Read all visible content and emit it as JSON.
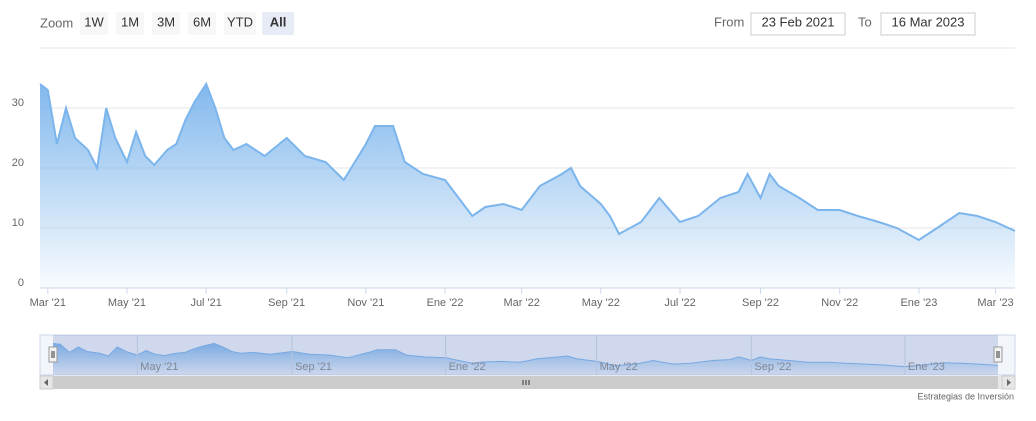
{
  "range_selector": {
    "zoom_label": "Zoom",
    "buttons": [
      "1W",
      "1M",
      "3M",
      "6M",
      "YTD",
      "All"
    ],
    "selected": "All",
    "from_label": "From",
    "from_value": "23 Feb 2021",
    "to_label": "To",
    "to_value": "16 Mar 2023"
  },
  "chart_data": {
    "type": "area",
    "color": "#7cb5ec",
    "x": [
      "2021-02-23",
      "2021-03-01",
      "2021-03-08",
      "2021-03-15",
      "2021-03-22",
      "2021-04-01",
      "2021-04-08",
      "2021-04-15",
      "2021-04-22",
      "2021-05-01",
      "2021-05-08",
      "2021-05-15",
      "2021-05-22",
      "2021-06-01",
      "2021-06-08",
      "2021-06-15",
      "2021-06-22",
      "2021-07-01",
      "2021-07-08",
      "2021-07-15",
      "2021-07-22",
      "2021-08-01",
      "2021-08-15",
      "2021-09-01",
      "2021-09-15",
      "2021-10-01",
      "2021-10-15",
      "2021-11-01",
      "2021-11-08",
      "2021-11-15",
      "2021-11-22",
      "2021-12-01",
      "2021-12-15",
      "2022-01-01",
      "2022-01-15",
      "2022-01-22",
      "2022-02-01",
      "2022-02-15",
      "2022-03-01",
      "2022-03-15",
      "2022-04-01",
      "2022-04-08",
      "2022-04-15",
      "2022-05-01",
      "2022-05-08",
      "2022-05-15",
      "2022-06-01",
      "2022-06-15",
      "2022-07-01",
      "2022-07-15",
      "2022-08-01",
      "2022-08-15",
      "2022-08-22",
      "2022-09-01",
      "2022-09-08",
      "2022-09-15",
      "2022-10-01",
      "2022-10-15",
      "2022-11-01",
      "2022-11-15",
      "2022-12-01",
      "2022-12-15",
      "2023-01-01",
      "2023-01-15",
      "2023-02-01",
      "2023-02-15",
      "2023-03-01",
      "2023-03-16"
    ],
    "values": [
      34,
      33,
      24,
      30,
      25,
      23,
      20,
      30,
      25,
      21,
      26,
      22,
      20.5,
      23,
      24,
      28,
      31,
      34,
      30,
      25,
      23,
      24,
      22,
      25,
      22,
      21,
      18,
      24,
      27,
      27,
      27,
      21,
      19,
      18,
      14,
      12,
      13.5,
      14,
      13,
      17,
      19,
      20,
      17,
      14,
      12,
      9,
      11,
      15,
      11,
      12,
      15,
      16,
      19,
      15,
      19,
      17,
      15,
      13,
      13,
      12,
      11,
      10,
      8,
      10,
      12.5,
      12,
      11,
      9.5
    ],
    "xlim": [
      "2021-02-23",
      "2023-03-16"
    ],
    "xticks": [
      {
        "value": "2021-03-01",
        "label": "Mar '21"
      },
      {
        "value": "2021-05-01",
        "label": "May '21"
      },
      {
        "value": "2021-07-01",
        "label": "Jul '21"
      },
      {
        "value": "2021-09-01",
        "label": "Sep '21"
      },
      {
        "value": "2021-11-01",
        "label": "Nov '21"
      },
      {
        "value": "2022-01-01",
        "label": "Ene '22"
      },
      {
        "value": "2022-03-01",
        "label": "Mar '22"
      },
      {
        "value": "2022-05-01",
        "label": "May '22"
      },
      {
        "value": "2022-07-01",
        "label": "Jul '22"
      },
      {
        "value": "2022-09-01",
        "label": "Sep '22"
      },
      {
        "value": "2022-11-01",
        "label": "Nov '22"
      },
      {
        "value": "2023-01-01",
        "label": "Ene '23"
      },
      {
        "value": "2023-03-01",
        "label": "Mar '23"
      }
    ],
    "ylim": [
      0,
      40
    ],
    "yticks": [
      0,
      10,
      20,
      30
    ],
    "grid": true,
    "navigator_xticks": [
      {
        "value": "2021-05-01",
        "label": "May '21"
      },
      {
        "value": "2021-09-01",
        "label": "Sep '21"
      },
      {
        "value": "2022-01-01",
        "label": "Ene '22"
      },
      {
        "value": "2022-05-01",
        "label": "May '22"
      },
      {
        "value": "2022-09-01",
        "label": "Sep '22"
      },
      {
        "value": "2023-01-01",
        "label": "Ene '23"
      }
    ]
  },
  "credit": "Estrategias de Inversión"
}
